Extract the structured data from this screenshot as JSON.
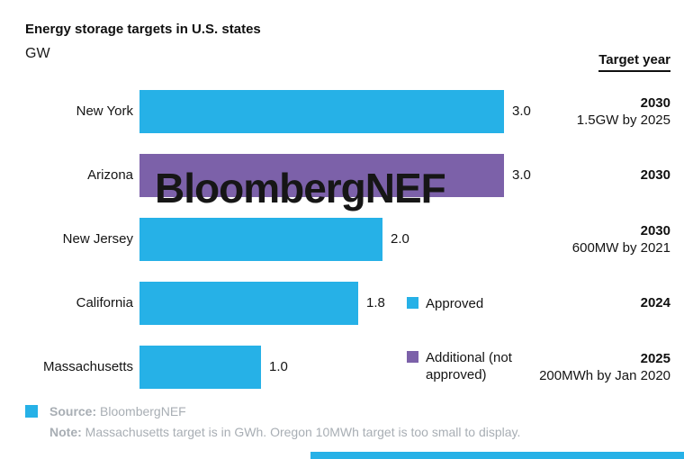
{
  "title": "Energy storage targets in U.S. states",
  "unit_label": "GW",
  "target_year_header": "Target year",
  "watermark": "BloombergNEF",
  "colors": {
    "approved": "#26b1e7",
    "additional": "#7c61a9",
    "footer_text": "#a8aeb4"
  },
  "chart_data": {
    "type": "bar",
    "orientation": "horizontal",
    "title": "Energy storage targets in U.S. states",
    "unit": "GW",
    "categories": [
      "New York",
      "Arizona",
      "New Jersey",
      "California",
      "Massachusetts"
    ],
    "values": [
      3.0,
      3.0,
      2.0,
      1.8,
      1.0
    ],
    "value_labels": [
      "3.0",
      "3.0",
      "2.0",
      "1.8",
      "1.0"
    ],
    "bar_series": [
      "Approved",
      "Additional (not approved)",
      "Approved",
      "Approved",
      "Approved"
    ],
    "bar_color_keys": [
      "approved",
      "additional",
      "approved",
      "approved",
      "approved"
    ],
    "target_years": [
      "2030",
      "2030",
      "2030",
      "2024",
      "2025"
    ],
    "target_subnotes": [
      "1.5GW by 2025",
      "",
      "600MW by 2021",
      "",
      "200MWh by Jan 2020"
    ],
    "xlim": [
      0,
      3.0
    ],
    "grid": false,
    "legend": [
      "Approved",
      "Additional (not approved)"
    ],
    "legend_position": "right-middle"
  },
  "legend": {
    "approved_label": "Approved",
    "additional_label": "Additional (not approved)"
  },
  "footer": {
    "source_label": "Source:",
    "source_value": " BloombergNEF",
    "note_label": "Note:",
    "note_value": " Massachusetts target is in GWh. Oregon 10MWh target is too small to display."
  }
}
